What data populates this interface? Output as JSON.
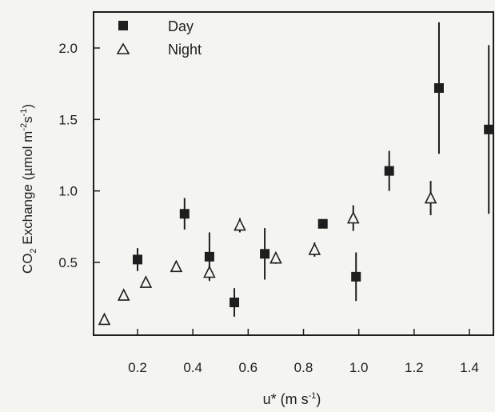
{
  "chart_data": {
    "type": "scatter",
    "xlabel_main": "u*",
    "xlabel_unit": "(m s",
    "xlabel_unit_exp": "-1",
    "xlabel_close": ")",
    "ylabel_pre": "CO",
    "ylabel_sub": "2",
    "ylabel_mid": " Exchange (µmol m",
    "ylabel_exp1": "-2",
    "ylabel_s": "s",
    "ylabel_exp2": "-1",
    "ylabel_close": ")",
    "xlim": [
      0.0,
      1.5
    ],
    "ylim": [
      0.0,
      2.25
    ],
    "xticks": [
      0.2,
      0.4,
      0.6,
      0.8,
      1.0,
      1.2,
      1.4
    ],
    "xtick_labels": [
      "0.2",
      "0.4",
      "0.6",
      "0.8",
      "1.0",
      "1.2",
      "1.4"
    ],
    "yticks": [
      0.5,
      1.0,
      1.5,
      2.0
    ],
    "ytick_labels": [
      "0.5",
      "1.0",
      "1.5",
      "2.0"
    ],
    "legend": {
      "position": "top-left"
    },
    "series": [
      {
        "name": "Day",
        "marker": "filled-square",
        "points": [
          {
            "x": 0.2,
            "y": 0.52,
            "err": 0.08
          },
          {
            "x": 0.37,
            "y": 0.84,
            "err": 0.11
          },
          {
            "x": 0.46,
            "y": 0.54,
            "err": 0.17
          },
          {
            "x": 0.55,
            "y": 0.22,
            "err": 0.1
          },
          {
            "x": 0.66,
            "y": 0.56,
            "err": 0.18
          },
          {
            "x": 0.87,
            "y": 0.77,
            "err": 0.03
          },
          {
            "x": 0.99,
            "y": 0.4,
            "err": 0.17
          },
          {
            "x": 1.11,
            "y": 1.14,
            "err": 0.14
          },
          {
            "x": 1.29,
            "y": 1.72,
            "err": 0.46
          },
          {
            "x": 1.47,
            "y": 1.43,
            "err": 0.59
          }
        ]
      },
      {
        "name": "Night",
        "marker": "open-triangle",
        "points": [
          {
            "x": 0.08,
            "y": 0.1,
            "err": 0
          },
          {
            "x": 0.15,
            "y": 0.27,
            "err": 0
          },
          {
            "x": 0.23,
            "y": 0.36,
            "err": 0
          },
          {
            "x": 0.34,
            "y": 0.47,
            "err": 0
          },
          {
            "x": 0.46,
            "y": 0.43,
            "err": 0.05
          },
          {
            "x": 0.57,
            "y": 0.76,
            "err": 0.05
          },
          {
            "x": 0.7,
            "y": 0.53,
            "err": 0.04
          },
          {
            "x": 0.84,
            "y": 0.59,
            "err": 0.05
          },
          {
            "x": 0.98,
            "y": 0.81,
            "err": 0.09
          },
          {
            "x": 1.26,
            "y": 0.95,
            "err": 0.12
          }
        ]
      }
    ]
  },
  "colors": {
    "background": "#f4f4f1",
    "ink": "#1e1e1e"
  }
}
